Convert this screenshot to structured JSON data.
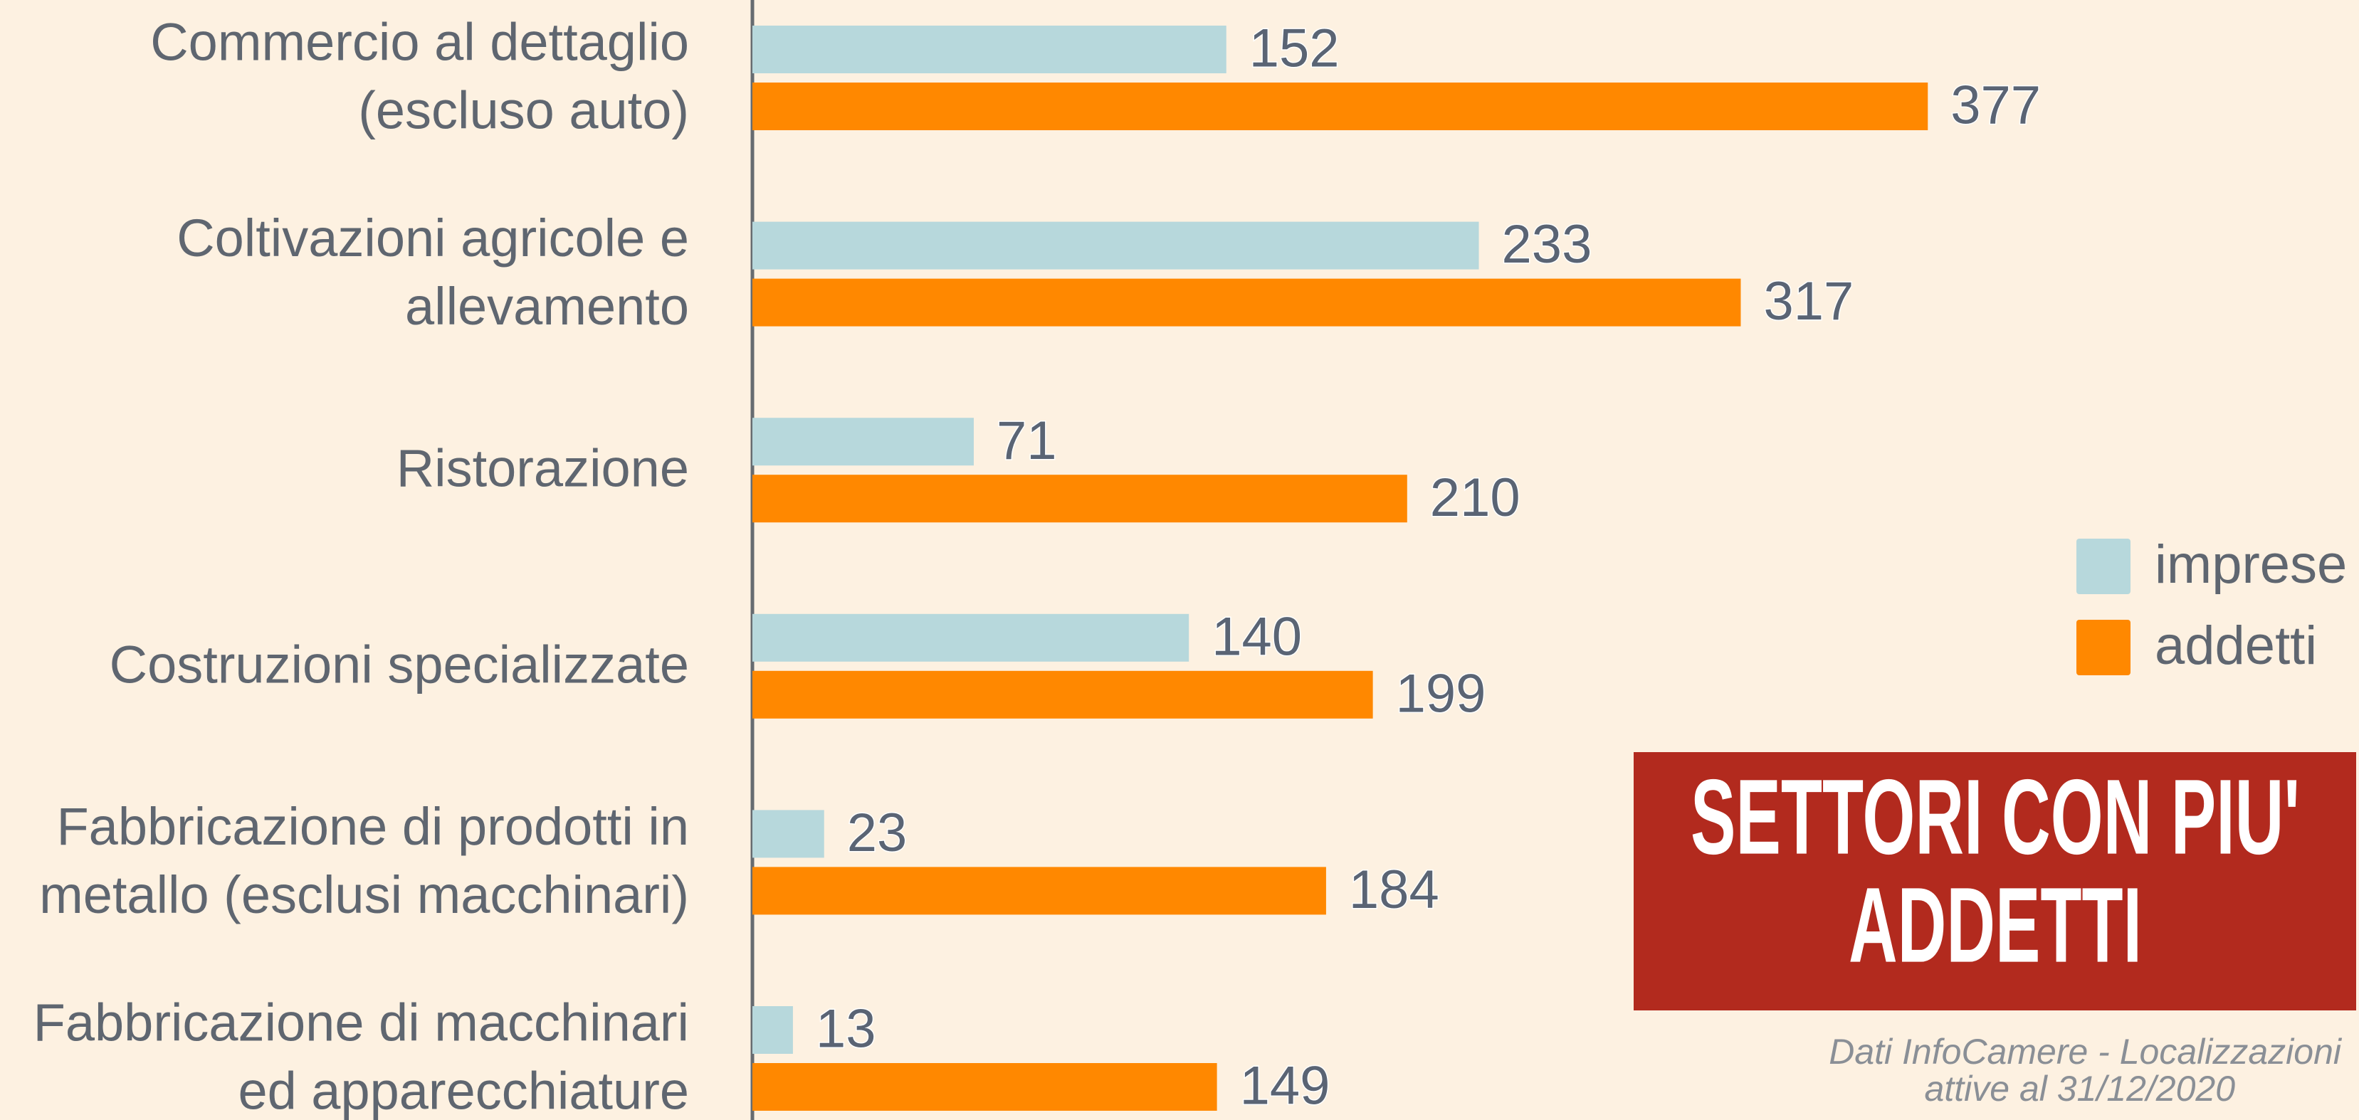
{
  "chart_data": {
    "type": "hbar",
    "title": [
      "SETTORI CON PIU'",
      "ADDETTI"
    ],
    "source": [
      "Dati InfoCamere - Localizzazioni",
      "attive al 31/12/2020"
    ],
    "categories": [
      [
        "Commercio al dettaglio",
        "(escluso auto)"
      ],
      [
        "Coltivazioni agricole e",
        "allevamento"
      ],
      [
        "Ristorazione"
      ],
      [
        "Costruzioni specializzate"
      ],
      [
        "Fabbricazione di prodotti in",
        "metallo (esclusi macchinari)"
      ],
      [
        "Fabbricazione di macchinari",
        "ed apparecchiature"
      ]
    ],
    "series": [
      {
        "name": "imprese",
        "color": "#b7d8dc",
        "values": [
          152,
          233,
          71,
          140,
          23,
          13
        ]
      },
      {
        "name": "addetti",
        "color": "#ff8800",
        "values": [
          377,
          317,
          210,
          199,
          184,
          149
        ]
      }
    ],
    "xlim": [
      0,
      500
    ],
    "legend": "right"
  }
}
